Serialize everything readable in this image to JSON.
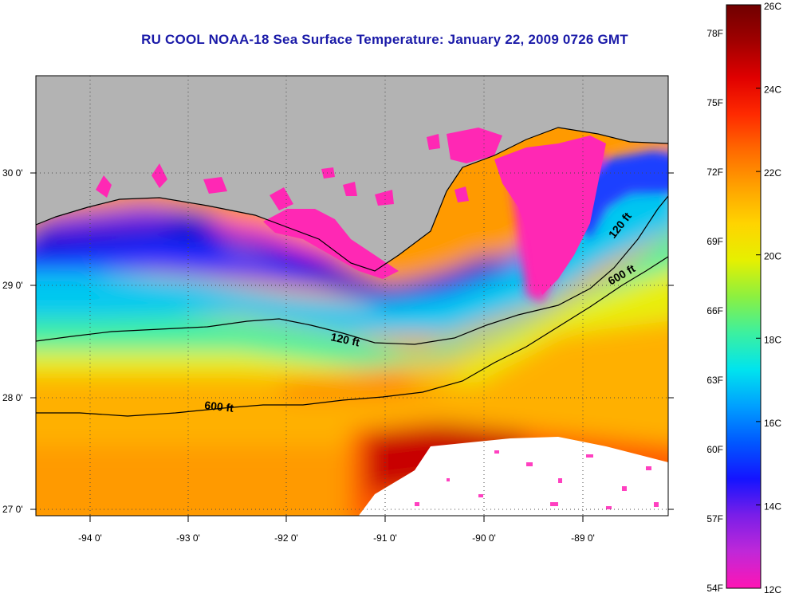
{
  "title": "RU COOL  NOAA-18  Sea Surface Temperature:  January 22, 2009 0726 GMT",
  "map": {
    "lat_ticks": [
      "30 0'",
      "29 0'",
      "28 0'",
      "27 0'"
    ],
    "lon_ticks": [
      "-94 0'",
      "-93 0'",
      "-92 0'",
      "-91 0'",
      "-90 0'",
      "-89 0'"
    ],
    "isobaths": [
      {
        "label": "120 ft"
      },
      {
        "label": "600 ft"
      },
      {
        "label": "120 ft"
      },
      {
        "label": "600 ft"
      }
    ],
    "colors": {
      "land": "#b3b3b3",
      "cloud": "#ffffff",
      "contour": "#000000",
      "grid": "#5a5a5a"
    }
  },
  "colorbar": {
    "f_labels": [
      "78F",
      "75F",
      "72F",
      "69F",
      "66F",
      "63F",
      "60F",
      "57F",
      "54F"
    ],
    "c_labels": [
      "26C",
      "24C",
      "22C",
      "20C",
      "18C",
      "16C",
      "14C",
      "12C"
    ],
    "stops": [
      "#ff14b4",
      "#c028d8",
      "#7a1ee8",
      "#1414ff",
      "#0058ff",
      "#00a0ff",
      "#00e4ee",
      "#3cf0a0",
      "#8cf040",
      "#e6f000",
      "#ffd400",
      "#ffa200",
      "#ff6a00",
      "#ff2a00",
      "#e00000",
      "#a00000",
      "#700000"
    ]
  }
}
